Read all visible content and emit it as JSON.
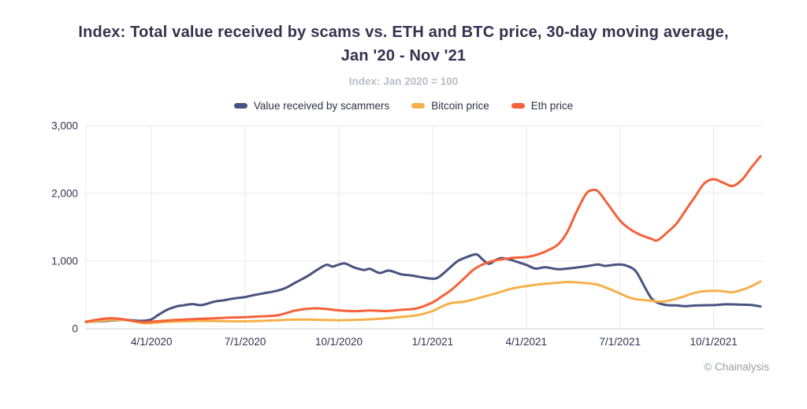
{
  "title": "Index: Total value received by scams vs. ETH and BTC price, 30-day moving average, Jan '20 - Nov '21",
  "subtitle": "Index: Jan 2020 = 100",
  "attribution": "© Chainalysis",
  "legend": {
    "items": [
      {
        "label": "Value received by scammers",
        "color": "#475380"
      },
      {
        "label": "Bitcoin price",
        "color": "#f5b04a"
      },
      {
        "label": "Eth price",
        "color": "#f4613a"
      }
    ]
  },
  "chart_data": {
    "type": "line",
    "title": "Index: Total value received by scams vs. ETH and BTC price, 30-day moving average, Jan '20 - Nov '21",
    "subtitle": "Index: Jan 2020 = 100",
    "x_unit": "months since Jan 1, 2020",
    "x_domain": [
      0.9,
      22.6
    ],
    "y_domain": [
      0,
      3000
    ],
    "grid": true,
    "legend_position": "top",
    "y_ticks": [
      {
        "value": 0,
        "label": "0"
      },
      {
        "value": 1000,
        "label": "1,000"
      },
      {
        "value": 2000,
        "label": "2,000"
      },
      {
        "value": 3000,
        "label": "3,000"
      }
    ],
    "x_ticks": [
      {
        "pos": 3,
        "label": "4/1/2020"
      },
      {
        "pos": 6,
        "label": "7/1/2020"
      },
      {
        "pos": 9,
        "label": "10/1/2020"
      },
      {
        "pos": 12,
        "label": "1/1/2021"
      },
      {
        "pos": 15,
        "label": "4/1/2021"
      },
      {
        "pos": 18,
        "label": "7/1/2021"
      },
      {
        "pos": 21,
        "label": "10/1/2021"
      }
    ],
    "series": [
      {
        "name": "Value received by scammers",
        "color": "#475380",
        "points": [
          [
            0.9,
            100
          ],
          [
            1.2,
            108
          ],
          [
            1.5,
            115
          ],
          [
            1.8,
            125
          ],
          [
            2.1,
            132
          ],
          [
            2.4,
            125
          ],
          [
            2.7,
            118
          ],
          [
            3.0,
            140
          ],
          [
            3.2,
            200
          ],
          [
            3.5,
            280
          ],
          [
            3.8,
            330
          ],
          [
            4.0,
            345
          ],
          [
            4.3,
            365
          ],
          [
            4.6,
            350
          ],
          [
            5.0,
            400
          ],
          [
            5.3,
            420
          ],
          [
            5.6,
            445
          ],
          [
            6.0,
            470
          ],
          [
            6.3,
            500
          ],
          [
            6.6,
            525
          ],
          [
            7.0,
            560
          ],
          [
            7.3,
            605
          ],
          [
            7.6,
            680
          ],
          [
            8.0,
            780
          ],
          [
            8.3,
            870
          ],
          [
            8.6,
            945
          ],
          [
            8.8,
            920
          ],
          [
            9.0,
            950
          ],
          [
            9.2,
            965
          ],
          [
            9.5,
            905
          ],
          [
            9.8,
            870
          ],
          [
            10.0,
            885
          ],
          [
            10.3,
            825
          ],
          [
            10.6,
            860
          ],
          [
            11.0,
            805
          ],
          [
            11.3,
            790
          ],
          [
            11.6,
            765
          ],
          [
            12.0,
            740
          ],
          [
            12.2,
            765
          ],
          [
            12.5,
            880
          ],
          [
            12.8,
            1000
          ],
          [
            13.1,
            1060
          ],
          [
            13.4,
            1100
          ],
          [
            13.6,
            1025
          ],
          [
            13.8,
            960
          ],
          [
            14.0,
            1010
          ],
          [
            14.2,
            1045
          ],
          [
            14.5,
            1020
          ],
          [
            14.8,
            975
          ],
          [
            15.0,
            945
          ],
          [
            15.3,
            890
          ],
          [
            15.6,
            910
          ],
          [
            16.0,
            880
          ],
          [
            16.3,
            890
          ],
          [
            16.6,
            905
          ],
          [
            17.0,
            930
          ],
          [
            17.3,
            950
          ],
          [
            17.5,
            930
          ],
          [
            17.8,
            945
          ],
          [
            18.0,
            950
          ],
          [
            18.2,
            935
          ],
          [
            18.5,
            855
          ],
          [
            18.8,
            610
          ],
          [
            19.0,
            455
          ],
          [
            19.2,
            385
          ],
          [
            19.5,
            350
          ],
          [
            19.8,
            345
          ],
          [
            20.1,
            335
          ],
          [
            20.5,
            345
          ],
          [
            21.0,
            350
          ],
          [
            21.4,
            362
          ],
          [
            21.8,
            358
          ],
          [
            22.2,
            352
          ],
          [
            22.5,
            330
          ]
        ]
      },
      {
        "name": "Bitcoin price",
        "color": "#f5b04a",
        "points": [
          [
            0.9,
            100
          ],
          [
            1.3,
            115
          ],
          [
            1.6,
            126
          ],
          [
            2.0,
            132
          ],
          [
            2.3,
            120
          ],
          [
            2.6,
            95
          ],
          [
            2.8,
            80
          ],
          [
            3.0,
            85
          ],
          [
            3.3,
            96
          ],
          [
            3.6,
            105
          ],
          [
            4.0,
            110
          ],
          [
            4.5,
            116
          ],
          [
            5.0,
            115
          ],
          [
            5.5,
            110
          ],
          [
            6.0,
            110
          ],
          [
            6.5,
            116
          ],
          [
            7.0,
            125
          ],
          [
            7.5,
            135
          ],
          [
            8.0,
            136
          ],
          [
            8.5,
            130
          ],
          [
            9.0,
            126
          ],
          [
            9.5,
            130
          ],
          [
            10.0,
            140
          ],
          [
            10.5,
            155
          ],
          [
            11.0,
            175
          ],
          [
            11.5,
            200
          ],
          [
            12.0,
            262
          ],
          [
            12.3,
            330
          ],
          [
            12.6,
            380
          ],
          [
            13.0,
            400
          ],
          [
            13.3,
            432
          ],
          [
            13.6,
            470
          ],
          [
            14.0,
            520
          ],
          [
            14.3,
            562
          ],
          [
            14.6,
            600
          ],
          [
            15.0,
            630
          ],
          [
            15.3,
            650
          ],
          [
            15.6,
            665
          ],
          [
            16.0,
            680
          ],
          [
            16.3,
            692
          ],
          [
            16.6,
            686
          ],
          [
            17.0,
            672
          ],
          [
            17.3,
            650
          ],
          [
            17.6,
            600
          ],
          [
            18.0,
            522
          ],
          [
            18.3,
            462
          ],
          [
            18.6,
            432
          ],
          [
            19.0,
            415
          ],
          [
            19.3,
            400
          ],
          [
            19.6,
            420
          ],
          [
            20.0,
            470
          ],
          [
            20.3,
            520
          ],
          [
            20.6,
            550
          ],
          [
            21.0,
            562
          ],
          [
            21.3,
            556
          ],
          [
            21.6,
            540
          ],
          [
            22.0,
            590
          ],
          [
            22.3,
            650
          ],
          [
            22.5,
            700
          ]
        ]
      },
      {
        "name": "Eth price",
        "color": "#f4613a",
        "points": [
          [
            0.9,
            105
          ],
          [
            1.2,
            130
          ],
          [
            1.5,
            150
          ],
          [
            1.8,
            155
          ],
          [
            2.1,
            140
          ],
          [
            2.4,
            115
          ],
          [
            2.7,
            100
          ],
          [
            3.0,
            105
          ],
          [
            3.3,
            115
          ],
          [
            3.6,
            126
          ],
          [
            4.0,
            135
          ],
          [
            4.5,
            146
          ],
          [
            5.0,
            155
          ],
          [
            5.5,
            165
          ],
          [
            6.0,
            172
          ],
          [
            6.5,
            182
          ],
          [
            7.0,
            196
          ],
          [
            7.3,
            230
          ],
          [
            7.6,
            270
          ],
          [
            8.0,
            295
          ],
          [
            8.3,
            302
          ],
          [
            8.6,
            292
          ],
          [
            9.0,
            272
          ],
          [
            9.5,
            260
          ],
          [
            10.0,
            270
          ],
          [
            10.5,
            262
          ],
          [
            11.0,
            280
          ],
          [
            11.5,
            302
          ],
          [
            12.0,
            390
          ],
          [
            12.3,
            480
          ],
          [
            12.6,
            575
          ],
          [
            13.0,
            740
          ],
          [
            13.3,
            870
          ],
          [
            13.6,
            950
          ],
          [
            14.0,
            1010
          ],
          [
            14.3,
            1032
          ],
          [
            14.6,
            1050
          ],
          [
            15.0,
            1060
          ],
          [
            15.3,
            1090
          ],
          [
            15.6,
            1140
          ],
          [
            16.0,
            1240
          ],
          [
            16.3,
            1420
          ],
          [
            16.6,
            1720
          ],
          [
            16.9,
            1985
          ],
          [
            17.1,
            2050
          ],
          [
            17.3,
            2030
          ],
          [
            17.6,
            1850
          ],
          [
            18.0,
            1600
          ],
          [
            18.3,
            1480
          ],
          [
            18.6,
            1400
          ],
          [
            19.0,
            1330
          ],
          [
            19.2,
            1308
          ],
          [
            19.5,
            1420
          ],
          [
            19.8,
            1550
          ],
          [
            20.1,
            1750
          ],
          [
            20.4,
            1950
          ],
          [
            20.7,
            2150
          ],
          [
            21.0,
            2210
          ],
          [
            21.3,
            2160
          ],
          [
            21.6,
            2110
          ],
          [
            21.9,
            2200
          ],
          [
            22.2,
            2380
          ],
          [
            22.5,
            2550
          ]
        ]
      }
    ]
  }
}
